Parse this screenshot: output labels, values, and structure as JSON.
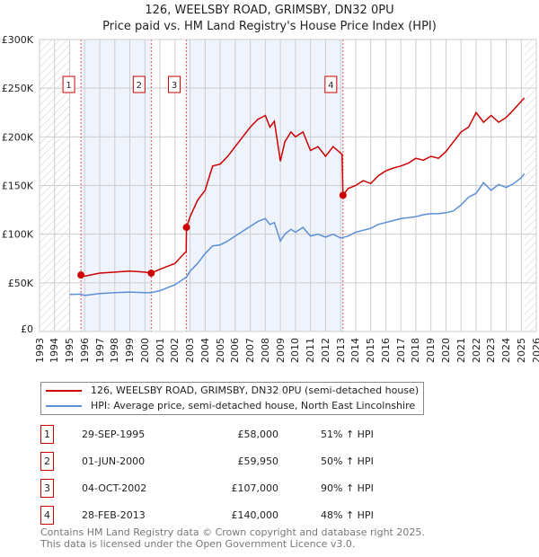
{
  "title": "126, WEELSBY ROAD, GRIMSBY, DN32 0PU",
  "subtitle": "Price paid vs. HM Land Registry's House Price Index (HPI)",
  "chart_data": {
    "type": "line",
    "xlim": [
      1993,
      2026
    ],
    "ylim": [
      0,
      300000
    ],
    "x_ticks": [
      "1993",
      "1994",
      "1995",
      "1996",
      "1997",
      "1998",
      "1999",
      "2000",
      "2001",
      "2002",
      "2003",
      "2004",
      "2005",
      "2006",
      "2007",
      "2008",
      "2009",
      "2010",
      "2011",
      "2012",
      "2013",
      "2014",
      "2015",
      "2016",
      "2017",
      "2018",
      "2019",
      "2020",
      "2021",
      "2022",
      "2023",
      "2024",
      "2025",
      "2026"
    ],
    "y_ticks": [
      {
        "v": 0,
        "label": "£0"
      },
      {
        "v": 50000,
        "label": "£50K"
      },
      {
        "v": 100000,
        "label": "£100K"
      },
      {
        "v": 150000,
        "label": "£150K"
      },
      {
        "v": 200000,
        "label": "£200K"
      },
      {
        "v": 250000,
        "label": "£250K"
      },
      {
        "v": 300000,
        "label": "£300K"
      }
    ],
    "hatched_before": 1995.0,
    "hatched_after": 2025.2,
    "shaded_ranges": [
      [
        1995.75,
        2000.42
      ],
      [
        2002.76,
        2013.16
      ]
    ],
    "series": [
      {
        "name": "126, WEELSBY ROAD, GRIMSBY, DN32 0PU (semi-detached house)",
        "color": "#cc0000",
        "x": [
          1995.75,
          1996,
          1997,
          1998,
          1999,
          2000,
          2000.42,
          2001,
          2002,
          2002.6,
          2002.74,
          2002.76,
          2003,
          2003.5,
          2004,
          2004.5,
          2005,
          2005.5,
          2006,
          2006.5,
          2007,
          2007.5,
          2008,
          2008.3,
          2008.6,
          2009,
          2009.3,
          2009.7,
          2010,
          2010.5,
          2011,
          2011.5,
          2012,
          2012.5,
          2013.1,
          2013.16,
          2013.5,
          2014,
          2014.5,
          2015,
          2015.5,
          2016,
          2016.5,
          2017,
          2017.5,
          2018,
          2018.5,
          2019,
          2019.5,
          2020,
          2020.5,
          2021,
          2021.5,
          2022,
          2022.5,
          2023,
          2023.5,
          2024,
          2024.5,
          2025.2
        ],
        "y": [
          58000,
          57000,
          60000,
          61000,
          62000,
          61000,
          59950,
          64000,
          70000,
          80000,
          82000,
          107000,
          118000,
          135000,
          145000,
          170000,
          172000,
          180000,
          190000,
          200000,
          210000,
          218000,
          222000,
          210000,
          216000,
          175000,
          195000,
          205000,
          200000,
          205000,
          186000,
          190000,
          180000,
          190000,
          182000,
          140000,
          147000,
          150000,
          155000,
          152000,
          160000,
          165000,
          168000,
          170000,
          173000,
          178000,
          176000,
          180000,
          178000,
          185000,
          195000,
          205000,
          210000,
          225000,
          215000,
          222000,
          215000,
          220000,
          228000,
          240000
        ]
      },
      {
        "name": "HPI: Average price, semi-detached house, North East Lincolnshire",
        "color": "#5b8fd6",
        "x": [
          1995,
          1995.75,
          1996,
          1997,
          1998,
          1999,
          2000,
          2000.42,
          2001,
          2002,
          2002.76,
          2003,
          2003.5,
          2004,
          2004.5,
          2005,
          2005.5,
          2006,
          2006.5,
          2007,
          2007.5,
          2008,
          2008.3,
          2008.6,
          2009,
          2009.3,
          2009.7,
          2010,
          2010.5,
          2011,
          2011.5,
          2012,
          2012.5,
          2013,
          2013.5,
          2014,
          2014.5,
          2015,
          2015.5,
          2016,
          2016.5,
          2017,
          2017.5,
          2018,
          2018.5,
          2019,
          2019.5,
          2020,
          2020.5,
          2021,
          2021.5,
          2022,
          2022.5,
          2023,
          2023.5,
          2024,
          2024.5,
          2025,
          2025.2
        ],
        "y": [
          38000,
          38400,
          37000,
          39000,
          40000,
          40500,
          40000,
          40000,
          42000,
          48000,
          56000,
          62000,
          70000,
          80000,
          88000,
          89000,
          93000,
          98000,
          103000,
          108000,
          113000,
          116000,
          110000,
          112000,
          93000,
          100000,
          105000,
          102000,
          107000,
          98000,
          100000,
          97000,
          100000,
          96000,
          98000,
          102000,
          104000,
          106000,
          110000,
          112000,
          114000,
          116000,
          117000,
          118000,
          120000,
          121000,
          121000,
          122000,
          124000,
          130000,
          138000,
          142000,
          153000,
          145000,
          151000,
          148000,
          152000,
          158000,
          162000
        ]
      }
    ],
    "sales": [
      {
        "n": "1",
        "x": 1995.75,
        "y": 58000,
        "date": "29-SEP-1995",
        "price": "£58,000",
        "hpi": "51% ↑ HPI"
      },
      {
        "n": "2",
        "x": 2000.42,
        "y": 59950,
        "date": "01-JUN-2000",
        "price": "£59,950",
        "hpi": "50% ↑ HPI"
      },
      {
        "n": "3",
        "x": 2002.76,
        "y": 107000,
        "date": "04-OCT-2002",
        "price": "£107,000",
        "hpi": "90% ↑ HPI"
      },
      {
        "n": "4",
        "x": 2013.16,
        "y": 140000,
        "date": "28-FEB-2013",
        "price": "£140,000",
        "hpi": "48% ↑ HPI"
      }
    ]
  },
  "legend": {
    "red": "126, WEELSBY ROAD, GRIMSBY, DN32 0PU (semi-detached house)",
    "blue": "HPI: Average price, semi-detached house, North East Lincolnshire"
  },
  "footer": {
    "line1": "Contains HM Land Registry data © Crown copyright and database right 2025.",
    "line2": "This data is licensed under the Open Government Licence v3.0."
  }
}
